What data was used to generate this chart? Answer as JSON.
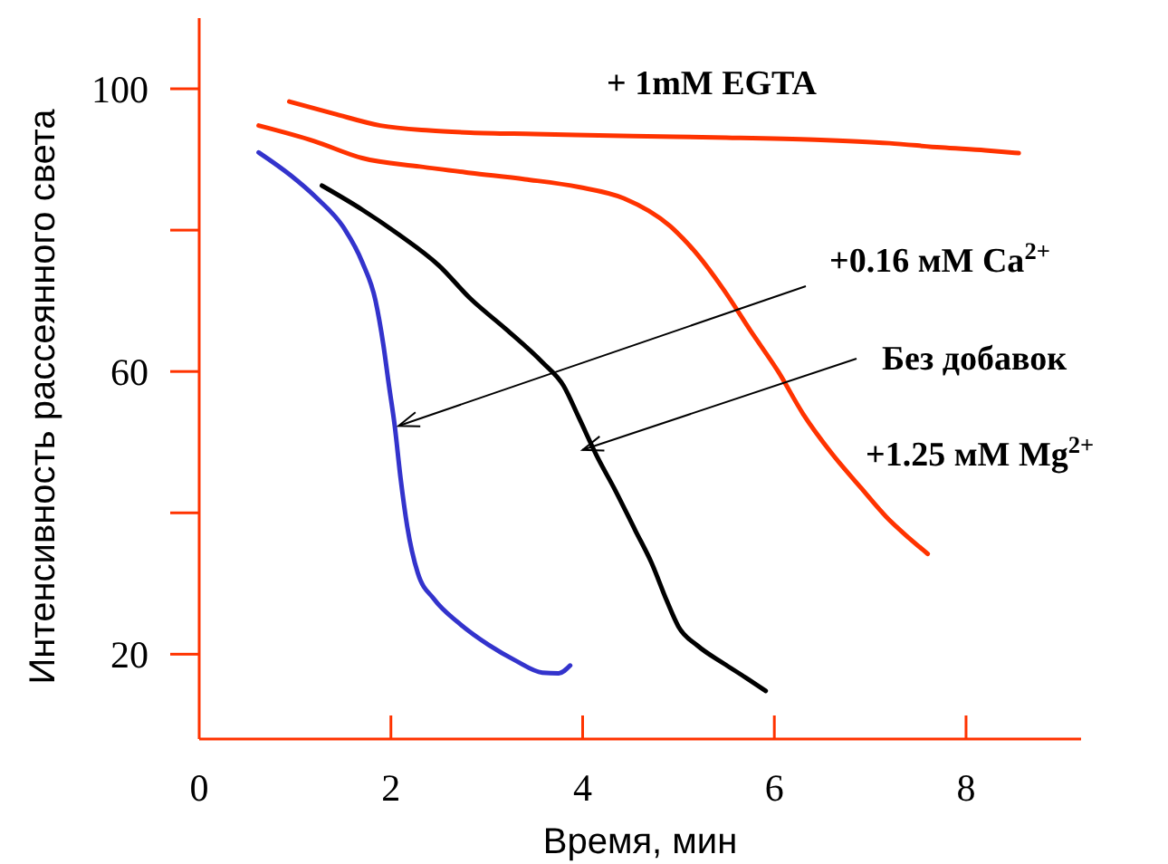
{
  "chart_data": {
    "type": "line",
    "xlabel": "Время, мин",
    "ylabel": "Интенсивность рассеянного света",
    "xlim": [
      0,
      9.2
    ],
    "ylim": [
      8,
      110
    ],
    "xticks": [
      0,
      2,
      4,
      6,
      8
    ],
    "yticks": [
      {
        "value": 20,
        "label": "20"
      },
      {
        "value": 40,
        "label": null
      },
      {
        "value": 60,
        "label": "60"
      },
      {
        "value": 80,
        "label": null
      },
      {
        "value": 100,
        "label": "100"
      }
    ],
    "marker": "none",
    "line_style": "solid",
    "series": [
      {
        "color": "#ff3300",
        "x": [
          0.94,
          1.4,
          1.89,
          2.4,
          2.83,
          3.5,
          4.53,
          5.5,
          6.42,
          7.2,
          7.74,
          8.2,
          8.55
        ],
        "values": [
          98.2,
          96.5,
          94.8,
          94.1,
          93.8,
          93.6,
          93.3,
          93.1,
          92.8,
          92.3,
          91.7,
          91.3,
          90.9
        ]
      },
      {
        "color": "#ff3300",
        "x": [
          0.62,
          1.2,
          1.7,
          2.3,
          2.83,
          3.4,
          3.96,
          4.43,
          4.91,
          5.2,
          5.47,
          5.75,
          6.04,
          6.3,
          6.6,
          6.9,
          7.17,
          7.4,
          7.6
        ],
        "values": [
          94.8,
          92.6,
          90.2,
          89.0,
          88.1,
          87.2,
          86.1,
          84.5,
          80.6,
          76.5,
          71.6,
          65.8,
          60.0,
          54.0,
          48.4,
          43.6,
          39.4,
          36.5,
          34.2
        ]
      },
      {
        "color": "#000000",
        "x": [
          1.28,
          1.7,
          2.08,
          2.5,
          2.83,
          3.2,
          3.58,
          3.8,
          3.96,
          4.15,
          4.34,
          4.55,
          4.72,
          4.88,
          5.0,
          5.2,
          5.47,
          5.7,
          5.91
        ],
        "values": [
          86.3,
          82.9,
          79.4,
          75.0,
          70.3,
          66.0,
          61.3,
          58.0,
          53.5,
          48.0,
          43.2,
          37.5,
          32.9,
          27.5,
          23.9,
          21.2,
          18.7,
          16.7,
          14.8
        ]
      },
      {
        "color": "#3333cc",
        "x": [
          0.62,
          0.95,
          1.23,
          1.5,
          1.7,
          1.84,
          1.92,
          1.98,
          2.04,
          2.1,
          2.17,
          2.28,
          2.45,
          2.7,
          3.02,
          3.3,
          3.58,
          3.75,
          3.87
        ],
        "values": [
          91.0,
          87.8,
          84.5,
          80.5,
          75.5,
          70.0,
          63.9,
          58.0,
          52.3,
          45.0,
          38.1,
          31.5,
          27.8,
          24.5,
          21.3,
          19.1,
          17.4,
          17.3,
          18.4
        ]
      }
    ],
    "annotations": [
      "+ 1mM EGTA",
      {
        "text": "+0.16 мМ Ca$^{2+}$",
        "x": 2.08,
        "y": 52.3
      },
      {
        "text": "Без добавок",
        "x": 4.0,
        "y": 48.9
      },
      "+1.25 мМ Mg$^{2+}$"
    ]
  }
}
